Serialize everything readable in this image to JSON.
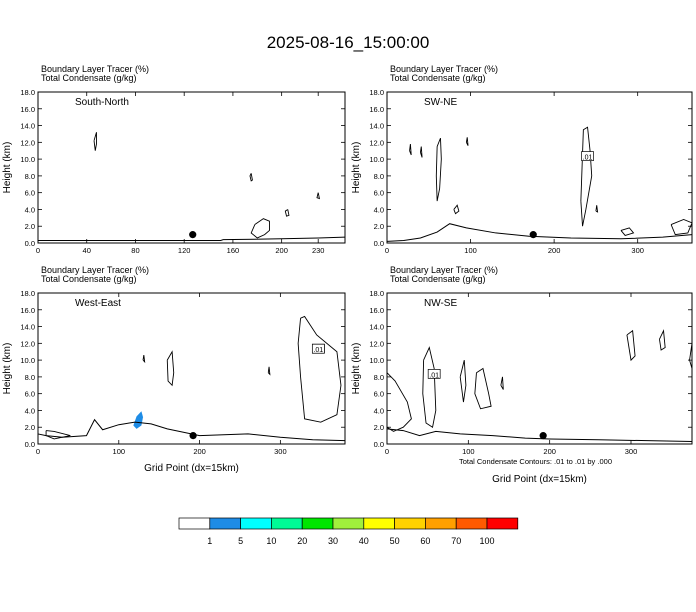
{
  "title": "2025-08-16_15:00:00",
  "panel_header": {
    "line1": "Boundary Layer Tracer",
    "line1_unit": "(%)",
    "line2": "Total Condensate",
    "line2_unit": "(g/kg)"
  },
  "xlabel": "Grid Point (dx=15km)",
  "ylabel": "Height (km)",
  "contour_note": "Total Condensate Contours: .01 to .01 by .000",
  "contour_label": ".01",
  "colors": {
    "line": "#000000",
    "tracer_low": "#1e8ce6",
    "tracer_mid": "#00ffff"
  },
  "chart_data": [
    {
      "type": "contour",
      "panel": "South-North",
      "title": "South-North",
      "xlim": [
        0,
        252
      ],
      "xticks": [
        0,
        40,
        80,
        120,
        160,
        200,
        230
      ],
      "ylim": [
        0,
        18
      ],
      "yticks": [
        "0.0",
        "2.0",
        "4.0",
        "6.0",
        "8.0",
        "10.0",
        "12.0",
        "14.0",
        "16.0",
        "18.0"
      ],
      "marker": {
        "x": 127,
        "y": 1.0
      },
      "terrain": [
        [
          0,
          0.3
        ],
        [
          150,
          0.3
        ],
        [
          152,
          0.4
        ],
        [
          200,
          0.5
        ],
        [
          230,
          0.6
        ],
        [
          252,
          0.7
        ]
      ],
      "contours": [
        [
          [
            46,
            12.2
          ],
          [
            48,
            13.2
          ],
          [
            48,
            11.8
          ],
          [
            47,
            11.0
          ],
          [
            46,
            12.2
          ]
        ],
        [
          [
            175,
            8.3
          ],
          [
            176,
            7.5
          ],
          [
            175,
            7.4
          ],
          [
            174,
            8.0
          ],
          [
            175,
            8.3
          ]
        ],
        [
          [
            178,
            2.2
          ],
          [
            185,
            2.9
          ],
          [
            190,
            2.6
          ],
          [
            190,
            1.5
          ],
          [
            186,
            1.0
          ],
          [
            180,
            0.6
          ],
          [
            175,
            1.2
          ],
          [
            178,
            2.2
          ]
        ],
        [
          [
            205,
            4.0
          ],
          [
            206,
            3.3
          ],
          [
            204,
            3.2
          ],
          [
            203,
            3.8
          ],
          [
            205,
            4.0
          ]
        ],
        [
          [
            230,
            6.0
          ],
          [
            231,
            5.3
          ],
          [
            229,
            5.4
          ],
          [
            230,
            6.0
          ]
        ]
      ],
      "contour_labels": []
    },
    {
      "type": "contour",
      "panel": "SW-NE",
      "title": "SW-NE",
      "xlim": [
        0,
        365
      ],
      "xticks": [
        0,
        100,
        200,
        300
      ],
      "ylim": [
        0,
        18
      ],
      "yticks": [
        "0.0",
        "2.0",
        "4.0",
        "6.0",
        "8.0",
        "10.0",
        "12.0",
        "14.0",
        "16.0",
        "18.0"
      ],
      "marker": {
        "x": 175,
        "y": 1.0
      },
      "terrain": [
        [
          0,
          0.2
        ],
        [
          20,
          0.3
        ],
        [
          40,
          0.6
        ],
        [
          60,
          1.3
        ],
        [
          75,
          2.3
        ],
        [
          95,
          1.8
        ],
        [
          130,
          1.2
        ],
        [
          170,
          0.8
        ],
        [
          220,
          0.6
        ],
        [
          280,
          0.5
        ],
        [
          330,
          0.7
        ],
        [
          365,
          1.0
        ]
      ],
      "contours": [
        [
          [
            60,
            11.5
          ],
          [
            64,
            12.5
          ],
          [
            65,
            10.0
          ],
          [
            63,
            6.5
          ],
          [
            60,
            5.0
          ],
          [
            59,
            8.0
          ],
          [
            60,
            11.5
          ]
        ],
        [
          [
            27,
            11.0
          ],
          [
            28,
            11.8
          ],
          [
            29,
            10.5
          ],
          [
            27,
            11.0
          ]
        ],
        [
          [
            40,
            10.8
          ],
          [
            41,
            11.5
          ],
          [
            42,
            10.2
          ],
          [
            40,
            10.8
          ]
        ],
        [
          [
            95,
            12.0
          ],
          [
            96,
            12.6
          ],
          [
            97,
            11.6
          ],
          [
            95,
            12.0
          ]
        ],
        [
          [
            232,
            5.0
          ],
          [
            235,
            13.5
          ],
          [
            240,
            13.8
          ],
          [
            243,
            11.0
          ],
          [
            245,
            8.0
          ],
          [
            238,
            4.0
          ],
          [
            234,
            2.0
          ],
          [
            232,
            5.0
          ]
        ],
        [
          [
            80,
            4.0
          ],
          [
            84,
            4.5
          ],
          [
            86,
            3.8
          ],
          [
            82,
            3.5
          ],
          [
            80,
            4.0
          ]
        ],
        [
          [
            250,
            3.8
          ],
          [
            251,
            4.5
          ],
          [
            252,
            3.7
          ],
          [
            250,
            3.8
          ]
        ],
        [
          [
            280,
            1.5
          ],
          [
            290,
            1.8
          ],
          [
            295,
            1.2
          ],
          [
            285,
            0.9
          ],
          [
            280,
            1.5
          ]
        ],
        [
          [
            340,
            2.2
          ],
          [
            355,
            2.8
          ],
          [
            365,
            2.4
          ],
          [
            360,
            1.2
          ],
          [
            345,
            1.0
          ],
          [
            340,
            2.2
          ]
        ]
      ],
      "contour_labels": [
        {
          "x": 240,
          "y": 10.3
        }
      ]
    },
    {
      "type": "contour",
      "panel": "West-East",
      "title": "West-East",
      "xlim": [
        0,
        380
      ],
      "xticks": [
        0,
        100,
        200,
        300
      ],
      "ylim": [
        0,
        18
      ],
      "yticks": [
        "0.0",
        "2.0",
        "4.0",
        "6.0",
        "8.0",
        "10.0",
        "12.0",
        "14.0",
        "16.0",
        "18.0"
      ],
      "marker": {
        "x": 192,
        "y": 1.0
      },
      "terrain": [
        [
          0,
          1.2
        ],
        [
          10,
          1.0
        ],
        [
          30,
          0.8
        ],
        [
          60,
          1.0
        ],
        [
          70,
          2.9
        ],
        [
          80,
          1.7
        ],
        [
          100,
          2.3
        ],
        [
          120,
          2.6
        ],
        [
          140,
          2.4
        ],
        [
          160,
          1.8
        ],
        [
          200,
          1.0
        ],
        [
          260,
          1.2
        ],
        [
          300,
          0.8
        ],
        [
          340,
          0.5
        ],
        [
          380,
          0.4
        ]
      ],
      "contours": [
        [
          [
            160,
            10.0
          ],
          [
            166,
            11.0
          ],
          [
            168,
            8.5
          ],
          [
            166,
            7.0
          ],
          [
            161,
            7.5
          ],
          [
            160,
            10.0
          ]
        ],
        [
          [
            130,
            10.0
          ],
          [
            131,
            10.6
          ],
          [
            132,
            9.8
          ],
          [
            130,
            10.0
          ]
        ],
        [
          [
            285,
            8.5
          ],
          [
            286,
            9.2
          ],
          [
            287,
            8.3
          ],
          [
            285,
            8.5
          ]
        ],
        [
          [
            325,
            15.0
          ],
          [
            330,
            15.2
          ],
          [
            345,
            13.0
          ],
          [
            370,
            11.0
          ],
          [
            375,
            7.0
          ],
          [
            370,
            3.5
          ],
          [
            350,
            2.6
          ],
          [
            330,
            3.0
          ],
          [
            325,
            8.0
          ],
          [
            322,
            12.0
          ],
          [
            325,
            15.0
          ]
        ],
        [
          [
            10,
            1.6
          ],
          [
            20,
            1.5
          ],
          [
            40,
            1.0
          ],
          [
            20,
            0.6
          ],
          [
            10,
            1.0
          ],
          [
            10,
            1.6
          ]
        ]
      ],
      "tracer_fills": [
        {
          "color": "tracer_low",
          "points": [
            [
              118,
              2.2
            ],
            [
              122,
              3.3
            ],
            [
              128,
              3.9
            ],
            [
              130,
              3.2
            ],
            [
              128,
              2.2
            ],
            [
              122,
              1.8
            ],
            [
              118,
              2.2
            ]
          ]
        }
      ],
      "contour_labels": [
        {
          "x": 347,
          "y": 11.3
        },
        {
          "x": 347,
          "y": 11.3
        }
      ]
    },
    {
      "type": "contour",
      "panel": "NW-SE",
      "title": "NW-SE",
      "xlim": [
        0,
        375
      ],
      "xticks": [
        0,
        100,
        200,
        300
      ],
      "ylim": [
        0,
        18
      ],
      "yticks": [
        "0.0",
        "2.0",
        "4.0",
        "6.0",
        "8.0",
        "10.0",
        "12.0",
        "14.0",
        "16.0",
        "18.0"
      ],
      "marker": {
        "x": 192,
        "y": 1.0
      },
      "terrain": [
        [
          0,
          1.8
        ],
        [
          20,
          1.6
        ],
        [
          40,
          1.0
        ],
        [
          60,
          1.5
        ],
        [
          90,
          1.2
        ],
        [
          130,
          1.0
        ],
        [
          170,
          0.7
        ],
        [
          200,
          0.6
        ],
        [
          260,
          0.5
        ],
        [
          320,
          0.4
        ],
        [
          375,
          0.3
        ]
      ],
      "contours": [
        [
          [
            0,
            8.5
          ],
          [
            10,
            7.5
          ],
          [
            25,
            5.0
          ],
          [
            30,
            3.0
          ],
          [
            20,
            2.0
          ],
          [
            8,
            1.5
          ],
          [
            0,
            2.0
          ]
        ],
        [
          [
            45,
            10.0
          ],
          [
            52,
            11.5
          ],
          [
            58,
            9.0
          ],
          [
            60,
            4.0
          ],
          [
            56,
            2.0
          ],
          [
            48,
            2.5
          ],
          [
            44,
            6.0
          ],
          [
            45,
            10.0
          ]
        ],
        [
          [
            90,
            8.0
          ],
          [
            95,
            10.0
          ],
          [
            97,
            7.0
          ],
          [
            94,
            5.0
          ],
          [
            90,
            8.0
          ]
        ],
        [
          [
            110,
            8.5
          ],
          [
            118,
            9.0
          ],
          [
            125,
            6.0
          ],
          [
            128,
            4.5
          ],
          [
            115,
            4.2
          ],
          [
            108,
            6.0
          ],
          [
            110,
            8.5
          ]
        ],
        [
          [
            140,
            7.0
          ],
          [
            142,
            8.0
          ],
          [
            143,
            6.5
          ],
          [
            140,
            7.0
          ]
        ],
        [
          [
            295,
            13.0
          ],
          [
            302,
            13.5
          ],
          [
            305,
            10.5
          ],
          [
            300,
            10.0
          ],
          [
            295,
            13.0
          ]
        ],
        [
          [
            335,
            12.5
          ],
          [
            340,
            13.5
          ],
          [
            342,
            11.5
          ],
          [
            337,
            11.2
          ],
          [
            335,
            12.5
          ]
        ],
        [
          [
            375,
            12.0
          ],
          [
            372,
            10.0
          ],
          [
            375,
            9.0
          ]
        ]
      ],
      "contour_labels": [
        {
          "x": 58,
          "y": 8.3
        }
      ]
    }
  ],
  "colorbar": {
    "labels": [
      "1",
      "5",
      "10",
      "20",
      "30",
      "40",
      "50",
      "60",
      "70",
      "100"
    ],
    "colors": [
      "#ffffff",
      "#1e8ce6",
      "#00ffff",
      "#00fa96",
      "#00e600",
      "#a0f03c",
      "#ffff00",
      "#ffd200",
      "#ffa000",
      "#ff5a00",
      "#ff0000"
    ]
  }
}
